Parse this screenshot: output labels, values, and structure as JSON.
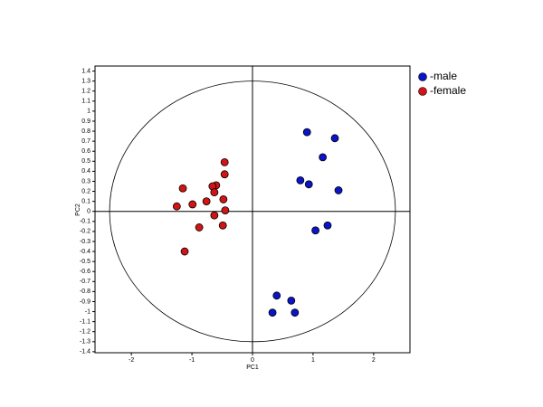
{
  "chart_data": {
    "type": "scatter",
    "xlabel": "PC1",
    "ylabel": "PC2",
    "xlim": [
      -2.6,
      2.6
    ],
    "ylim": [
      -1.41,
      1.45
    ],
    "xticks": [
      -2,
      -1,
      0,
      1,
      2
    ],
    "yticks": [
      1.4,
      1.3,
      1.2,
      1.1,
      1,
      0.9,
      0.8,
      0.7,
      0.6,
      0.5,
      0.4,
      0.3,
      0.2,
      0.1,
      0,
      -0.1,
      -0.2,
      -0.3,
      -0.4,
      -0.5,
      -0.6,
      -0.7,
      -0.8,
      -0.9,
      -1,
      -1.1,
      -1.2,
      -1.3,
      -1.4
    ],
    "ellipse": {
      "rx": 2.36,
      "ry": 1.3
    },
    "legend": "outside-top-right",
    "series": [
      {
        "name": "-male",
        "color": "#0a14c8",
        "x": [
          0.9,
          1.36,
          1.16,
          0.79,
          0.93,
          1.42,
          1.24,
          1.04,
          0.4,
          0.64,
          0.33,
          0.7
        ],
        "y": [
          0.79,
          0.73,
          0.54,
          0.31,
          0.27,
          0.21,
          -0.14,
          -0.19,
          -0.84,
          -0.89,
          -1.01,
          -1.01
        ]
      },
      {
        "name": "-female",
        "color": "#d21414",
        "x": [
          -0.46,
          -0.46,
          -1.15,
          -0.6,
          -0.66,
          -0.63,
          -0.48,
          -0.76,
          -0.99,
          -1.25,
          -0.45,
          -0.63,
          -0.49,
          -0.88,
          -1.12
        ],
        "y": [
          0.49,
          0.37,
          0.23,
          0.26,
          0.25,
          0.19,
          0.12,
          0.1,
          0.07,
          0.05,
          0.01,
          -0.04,
          -0.14,
          -0.16,
          -0.4
        ]
      }
    ]
  }
}
